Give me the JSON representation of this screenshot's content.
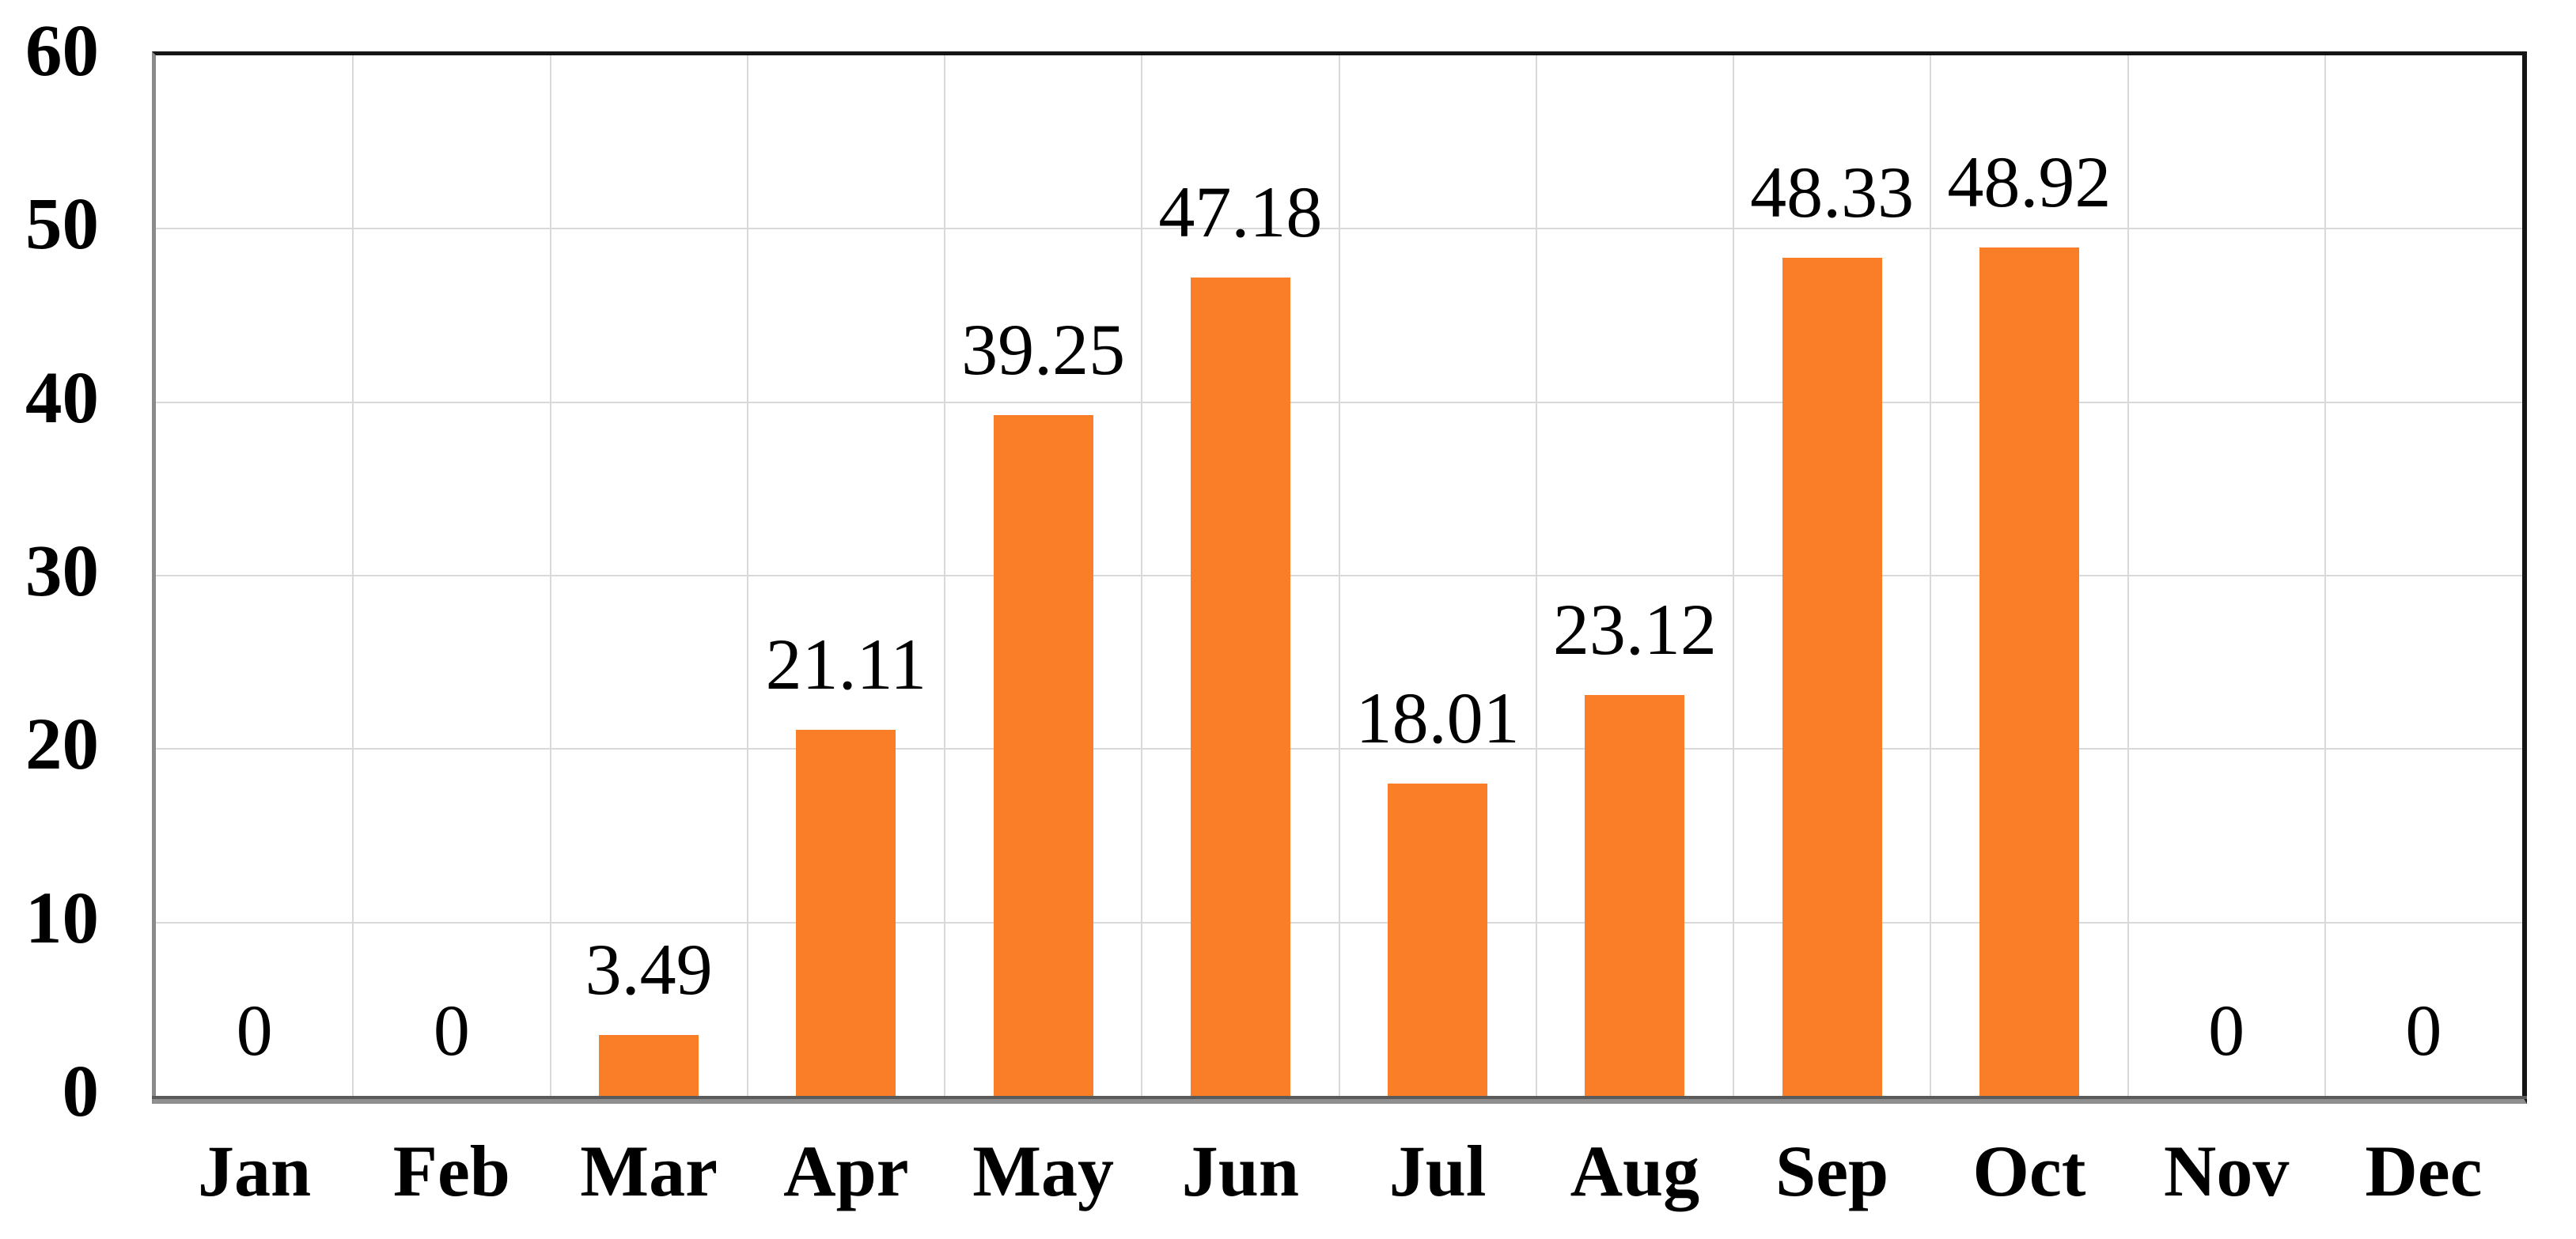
{
  "chart_data": {
    "type": "bar",
    "title": "",
    "xlabel": "",
    "ylabel": "",
    "categories": [
      "Jan",
      "Feb",
      "Mar",
      "Apr",
      "May",
      "Jun",
      "Jul",
      "Aug",
      "Sep",
      "Oct",
      "Nov",
      "Dec"
    ],
    "values": [
      0,
      0,
      3.49,
      21.11,
      39.25,
      47.18,
      18.01,
      23.12,
      48.33,
      48.92,
      0,
      0
    ],
    "bar_labels": [
      "0",
      "0",
      "3.49",
      "21.11",
      "39.25",
      "47.18",
      "18.01",
      "23.12",
      "48.33",
      "48.92",
      "0",
      "0"
    ],
    "yticks": [
      "0",
      "10",
      "20",
      "30",
      "40",
      "50",
      "60"
    ],
    "ylim": [
      0,
      60
    ],
    "grid": true,
    "legend": false,
    "colors": {
      "bar": "#FA7E28",
      "gridline": "#D9D9D9",
      "frame_dark": "#151515",
      "axis_gray": "#8F8F8F",
      "text": "#000000",
      "background": "#FFFFFF"
    }
  }
}
